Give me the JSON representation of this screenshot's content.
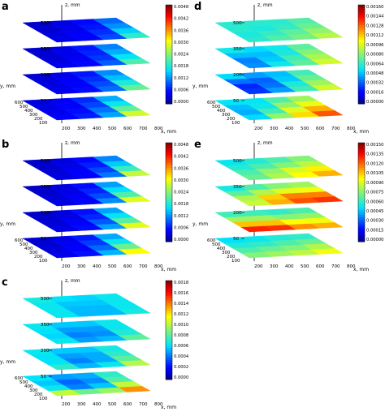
{
  "chart_data": [
    {
      "panel": "a",
      "type": "heatmap",
      "title": "",
      "zlabel": "z, mm",
      "ylabel": "y, mm",
      "xlabel": "x, mm",
      "z_ticks": [
        "500",
        "350",
        "200",
        "50"
      ],
      "y_ticks": [
        "600",
        "500",
        "400",
        "300",
        "200",
        "100"
      ],
      "x_ticks": [
        "200",
        "300",
        "400",
        "500",
        "600",
        "700",
        "800"
      ],
      "colorbar_ticks": [
        "0.0048",
        "0.0042",
        "0.0036",
        "0.0030",
        "0.0024",
        "0.0018",
        "0.0012",
        "0.0006",
        "0.0000"
      ],
      "zlim": [
        0,
        0.0052
      ],
      "layers_z": [
        500,
        350,
        200,
        50
      ],
      "x": [
        200,
        350,
        500,
        650,
        800
      ],
      "y": [
        100,
        250,
        400,
        550,
        700
      ],
      "layers": [
        [
          [
            0.0005,
            0.0006,
            0.0008,
            0.0014,
            0.0032
          ],
          [
            0.0004,
            0.0005,
            0.0007,
            0.0012,
            0.0026
          ],
          [
            0.0004,
            0.0004,
            0.0006,
            0.001,
            0.002
          ],
          [
            0.0003,
            0.0004,
            0.0005,
            0.0009,
            0.0016
          ],
          [
            0.0003,
            0.0004,
            0.0005,
            0.0008,
            0.0014
          ]
        ],
        [
          [
            0.0005,
            0.0006,
            0.0009,
            0.0016,
            0.0034
          ],
          [
            0.0004,
            0.0005,
            0.0007,
            0.0013,
            0.0028
          ],
          [
            0.0004,
            0.0004,
            0.0006,
            0.0011,
            0.0022
          ],
          [
            0.0003,
            0.0004,
            0.0006,
            0.001,
            0.0018
          ],
          [
            0.0003,
            0.0004,
            0.0005,
            0.0009,
            0.0015
          ]
        ],
        [
          [
            0.0005,
            0.0006,
            0.0009,
            0.0017,
            0.0036
          ],
          [
            0.0004,
            0.0005,
            0.0008,
            0.0014,
            0.003
          ],
          [
            0.0004,
            0.0005,
            0.0007,
            0.0012,
            0.0024
          ],
          [
            0.0004,
            0.0004,
            0.0006,
            0.001,
            0.0019
          ],
          [
            0.0003,
            0.0004,
            0.0005,
            0.0009,
            0.0016
          ]
        ],
        [
          [
            0.0006,
            0.0007,
            0.001,
            0.0022,
            0.0046
          ],
          [
            0.0005,
            0.0006,
            0.0009,
            0.0018,
            0.0036
          ],
          [
            0.0004,
            0.0005,
            0.0008,
            0.0014,
            0.0028
          ],
          [
            0.0004,
            0.0005,
            0.0007,
            0.0011,
            0.0022
          ],
          [
            0.0004,
            0.0004,
            0.0006,
            0.001,
            0.0018
          ]
        ]
      ]
    },
    {
      "panel": "b",
      "type": "heatmap",
      "title": "",
      "zlabel": "z, mm",
      "ylabel": "y, mm",
      "xlabel": "x, mm",
      "z_ticks": [
        "500",
        "350",
        "200",
        "50"
      ],
      "y_ticks": [
        "600",
        "500",
        "400",
        "300",
        "200",
        "100"
      ],
      "x_ticks": [
        "200",
        "300",
        "400",
        "500",
        "600",
        "700",
        "800"
      ],
      "colorbar_ticks": [
        "0.0048",
        "0.0042",
        "0.0036",
        "0.0030",
        "0.0024",
        "0.0018",
        "0.0012",
        "0.0006",
        "0.0000"
      ],
      "zlim": [
        0,
        0.0052
      ],
      "layers_z": [
        500,
        350,
        200,
        50
      ],
      "x": [
        200,
        350,
        500,
        650,
        800
      ],
      "y": [
        100,
        250,
        400,
        550,
        700
      ],
      "layers": [
        [
          [
            0.0004,
            0.0005,
            0.0008,
            0.002,
            0.005
          ],
          [
            0.0004,
            0.0005,
            0.0007,
            0.0015,
            0.0034
          ],
          [
            0.0003,
            0.0004,
            0.0006,
            0.0012,
            0.0026
          ],
          [
            0.0003,
            0.0004,
            0.0005,
            0.0009,
            0.002
          ],
          [
            0.0003,
            0.0003,
            0.0005,
            0.0008,
            0.0016
          ]
        ],
        [
          [
            0.0004,
            0.0005,
            0.0009,
            0.0022,
            0.0052
          ],
          [
            0.0004,
            0.0005,
            0.0007,
            0.0016,
            0.0036
          ],
          [
            0.0003,
            0.0004,
            0.0006,
            0.0012,
            0.0028
          ],
          [
            0.0003,
            0.0004,
            0.0005,
            0.001,
            0.0022
          ],
          [
            0.0003,
            0.0003,
            0.0005,
            0.0008,
            0.0018
          ]
        ],
        [
          [
            0.0004,
            0.0006,
            0.0009,
            0.0024,
            0.005
          ],
          [
            0.0004,
            0.0005,
            0.0008,
            0.0017,
            0.0036
          ],
          [
            0.0003,
            0.0004,
            0.0006,
            0.0013,
            0.0028
          ],
          [
            0.0003,
            0.0004,
            0.0005,
            0.001,
            0.0022
          ],
          [
            0.0003,
            0.0003,
            0.0005,
            0.0009,
            0.0018
          ]
        ],
        [
          [
            0.0005,
            0.0006,
            0.001,
            0.0026,
            0.0052
          ],
          [
            0.0004,
            0.0005,
            0.0008,
            0.0018,
            0.0038
          ],
          [
            0.0004,
            0.0004,
            0.0007,
            0.0014,
            0.0028
          ],
          [
            0.0003,
            0.0004,
            0.0006,
            0.0011,
            0.0022
          ],
          [
            0.0003,
            0.0004,
            0.0005,
            0.0009,
            0.0018
          ]
        ]
      ]
    },
    {
      "panel": "c",
      "type": "heatmap",
      "title": "",
      "zlabel": "z, mm",
      "ylabel": "y, mm",
      "xlabel": "x, mm",
      "z_ticks": [
        "500",
        "350",
        "200",
        "50"
      ],
      "y_ticks": [
        "600",
        "500",
        "400",
        "300",
        "200",
        "100"
      ],
      "x_ticks": [
        "200",
        "300",
        "400",
        "500",
        "600",
        "700",
        "800"
      ],
      "colorbar_ticks": [
        "0.0018",
        "0.0016",
        "0.0014",
        "0.0012",
        "0.0010",
        "0.0008",
        "0.0006",
        "0.0004",
        "0.0002",
        "0.0000"
      ],
      "zlim": [
        0,
        0.0018
      ],
      "layers_z": [
        500,
        350,
        200,
        50
      ],
      "x": [
        200,
        350,
        500,
        650,
        800
      ],
      "y": [
        100,
        250,
        400,
        550,
        700
      ],
      "layers": [
        [
          [
            0.0007,
            0.0006,
            0.0005,
            0.0006,
            0.0008
          ],
          [
            0.0007,
            0.0006,
            0.0005,
            0.0006,
            0.0007
          ],
          [
            0.0007,
            0.0006,
            0.0005,
            0.0006,
            0.0007
          ],
          [
            0.0007,
            0.0006,
            0.0006,
            0.0006,
            0.0007
          ],
          [
            0.0007,
            0.0007,
            0.0006,
            0.0006,
            0.0007
          ]
        ],
        [
          [
            0.0008,
            0.0006,
            0.0005,
            0.0007,
            0.0011
          ],
          [
            0.0007,
            0.0005,
            0.0004,
            0.0006,
            0.0009
          ],
          [
            0.0007,
            0.0005,
            0.0004,
            0.0005,
            0.0008
          ],
          [
            0.0007,
            0.0006,
            0.0005,
            0.0006,
            0.0007
          ],
          [
            0.0007,
            0.0006,
            0.0006,
            0.0006,
            0.0007
          ]
        ],
        [
          [
            0.0009,
            0.0007,
            0.0006,
            0.0009,
            0.0013
          ],
          [
            0.0008,
            0.0005,
            0.0004,
            0.0007,
            0.0011
          ],
          [
            0.0007,
            0.0005,
            0.0004,
            0.0006,
            0.0009
          ],
          [
            0.0007,
            0.0006,
            0.0005,
            0.0006,
            0.0008
          ],
          [
            0.0007,
            0.0006,
            0.0006,
            0.0006,
            0.0007
          ]
        ],
        [
          [
            0.0014,
            0.0012,
            0.0011,
            0.0013,
            0.0017
          ],
          [
            0.0009,
            0.0006,
            0.0005,
            0.0009,
            0.0015
          ],
          [
            0.0007,
            0.0004,
            0.0003,
            0.0006,
            0.0011
          ],
          [
            0.0007,
            0.0005,
            0.0004,
            0.0006,
            0.0009
          ],
          [
            0.0007,
            0.0006,
            0.0005,
            0.0006,
            0.0008
          ]
        ]
      ]
    },
    {
      "panel": "d",
      "type": "heatmap",
      "title": "",
      "zlabel": "z, mm",
      "ylabel": "y, mm",
      "xlabel": "x, mm",
      "z_ticks": [
        "500",
        "350",
        "200",
        "50"
      ],
      "y_ticks": [
        "600",
        "500",
        "400",
        "300",
        "200",
        "100"
      ],
      "x_ticks": [
        "200",
        "300",
        "400",
        "500",
        "600",
        "700",
        "800"
      ],
      "colorbar_ticks": [
        "0.00160",
        "0.00144",
        "0.00128",
        "0.00112",
        "0.00096",
        "0.00080",
        "0.00064",
        "0.00048",
        "0.00032",
        "0.00016",
        "0.00000"
      ],
      "zlim": [
        0,
        0.0017
      ],
      "layers_z": [
        500,
        350,
        200,
        50
      ],
      "x": [
        200,
        350,
        500,
        650,
        800
      ],
      "y": [
        100,
        250,
        400,
        550,
        700
      ],
      "layers": [
        [
          [
            0.0007,
            0.0007,
            0.0008,
            0.0009,
            0.0011
          ],
          [
            0.0006,
            0.0007,
            0.0008,
            0.0008,
            0.001
          ],
          [
            0.0007,
            0.0006,
            0.0007,
            0.0008,
            0.0009
          ],
          [
            0.0007,
            0.0007,
            0.0006,
            0.0007,
            0.0008
          ],
          [
            0.0006,
            0.0007,
            0.0007,
            0.0007,
            0.0008
          ]
        ],
        [
          [
            0.0004,
            0.0006,
            0.0007,
            0.0009,
            0.0012
          ],
          [
            0.0003,
            0.0005,
            0.0007,
            0.0008,
            0.0011
          ],
          [
            0.0005,
            0.0004,
            0.0006,
            0.0008,
            0.001
          ],
          [
            0.0006,
            0.0006,
            0.0005,
            0.0007,
            0.0009
          ],
          [
            0.0007,
            0.0006,
            0.0006,
            0.0007,
            0.0008
          ]
        ],
        [
          [
            0.0003,
            0.0004,
            0.0006,
            0.0009,
            0.0012
          ],
          [
            0.0002,
            0.0003,
            0.0006,
            0.0008,
            0.0011
          ],
          [
            0.0004,
            0.0002,
            0.0005,
            0.0007,
            0.001
          ],
          [
            0.0006,
            0.0004,
            0.0004,
            0.0006,
            0.0009
          ],
          [
            0.0007,
            0.0006,
            0.0005,
            0.0006,
            0.0008
          ]
        ],
        [
          [
            0.0005,
            0.0008,
            0.0011,
            0.0013,
            0.0016
          ],
          [
            0.0004,
            0.0006,
            0.001,
            0.0012,
            0.0014
          ],
          [
            0.0005,
            0.0005,
            0.0008,
            0.0011,
            0.0012
          ],
          [
            0.0006,
            0.0005,
            0.0007,
            0.0009,
            0.001
          ],
          [
            0.0007,
            0.0006,
            0.0006,
            0.0008,
            0.0009
          ]
        ]
      ]
    },
    {
      "panel": "e",
      "type": "heatmap",
      "title": "",
      "zlabel": "z, mm",
      "ylabel": "y, mm",
      "xlabel": "x, mm",
      "z_ticks": [
        "500",
        "350",
        "200",
        "50"
      ],
      "y_ticks": [
        "600",
        "500",
        "400",
        "300",
        "200",
        "100"
      ],
      "x_ticks": [
        "200",
        "300",
        "400",
        "500",
        "600",
        "700",
        "800"
      ],
      "colorbar_ticks": [
        "0.00150",
        "0.00135",
        "0.00120",
        "0.00105",
        "0.00090",
        "0.00075",
        "0.00060",
        "0.00045",
        "0.00030",
        "0.00015",
        "0.00000"
      ],
      "zlim": [
        0,
        0.0016
      ],
      "layers_z": [
        500,
        350,
        200,
        50
      ],
      "x": [
        200,
        350,
        500,
        650,
        800
      ],
      "y": [
        100,
        250,
        400,
        550,
        700
      ],
      "layers": [
        [
          [
            0.0007,
            0.0008,
            0.0009,
            0.0011,
            0.0012
          ],
          [
            0.0007,
            0.0008,
            0.001,
            0.0011,
            0.0012
          ],
          [
            0.0006,
            0.0007,
            0.0008,
            0.0009,
            0.001
          ],
          [
            0.0006,
            0.0006,
            0.0007,
            0.0008,
            0.0009
          ],
          [
            0.0005,
            0.0006,
            0.0006,
            0.0007,
            0.0008
          ]
        ],
        [
          [
            0.0008,
            0.001,
            0.0012,
            0.0013,
            0.0014
          ],
          [
            0.0008,
            0.0011,
            0.0013,
            0.0014,
            0.0013
          ],
          [
            0.0007,
            0.0009,
            0.0011,
            0.0011,
            0.0011
          ],
          [
            0.0006,
            0.0007,
            0.0008,
            0.0009,
            0.0009
          ],
          [
            0.0005,
            0.0006,
            0.0007,
            0.0008,
            0.0008
          ]
        ],
        [
          [
            0.0014,
            0.0015,
            0.0013,
            0.0012,
            0.0012
          ],
          [
            0.0012,
            0.0014,
            0.0012,
            0.0011,
            0.0011
          ],
          [
            0.0009,
            0.001,
            0.0009,
            0.0009,
            0.0009
          ],
          [
            0.0007,
            0.0008,
            0.0007,
            0.0007,
            0.0008
          ],
          [
            0.0006,
            0.0006,
            0.0006,
            0.0006,
            0.0007
          ]
        ],
        [
          [
            0.0008,
            0.0009,
            0.0009,
            0.001,
            0.0011
          ],
          [
            0.0007,
            0.0008,
            0.0008,
            0.0009,
            0.001
          ],
          [
            0.0006,
            0.0007,
            0.0007,
            0.0008,
            0.0008
          ],
          [
            0.0006,
            0.0006,
            0.0006,
            0.0007,
            0.0007
          ],
          [
            0.0005,
            0.0005,
            0.0006,
            0.0006,
            0.0006
          ]
        ]
      ]
    }
  ]
}
